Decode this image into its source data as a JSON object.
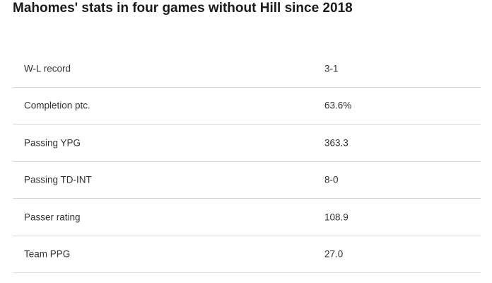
{
  "title": "Mahomes' stats in four games without Hill since 2018",
  "rows": [
    {
      "label": "W-L record",
      "value": "3-1"
    },
    {
      "label": "Completion ptc.",
      "value": "63.6%"
    },
    {
      "label": "Passing YPG",
      "value": "363.3"
    },
    {
      "label": "Passing TD-INT",
      "value": "8-0"
    },
    {
      "label": "Passer rating",
      "value": "108.9"
    },
    {
      "label": "Team PPG",
      "value": "27.0"
    }
  ],
  "colors": {
    "text": "#333333",
    "title": "#1a1a1a",
    "divider": "#d9d9d9",
    "background": "#ffffff"
  }
}
